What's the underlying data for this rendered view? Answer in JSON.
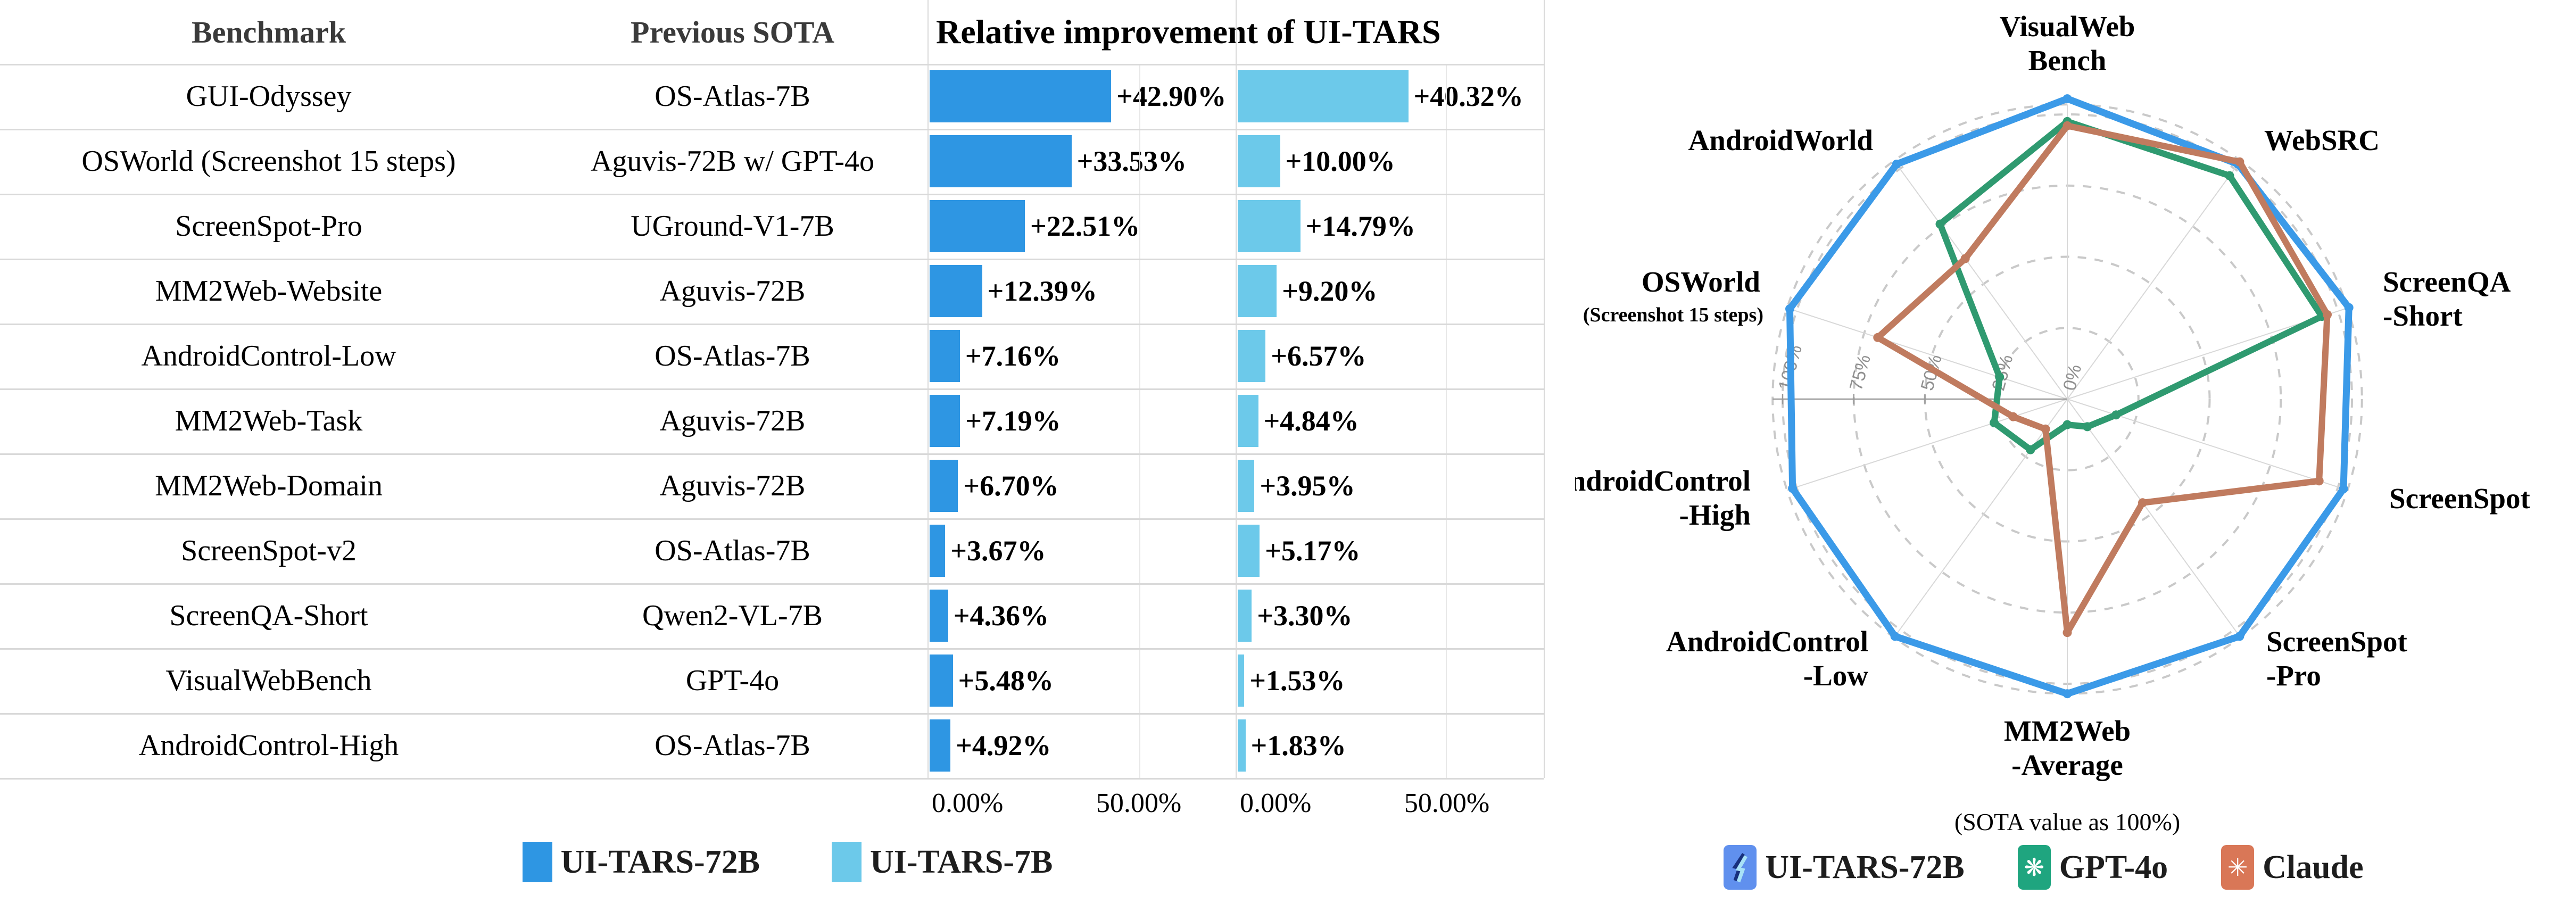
{
  "table": {
    "headers": {
      "benchmark": "Benchmark",
      "previous_sota": "Previous SOTA",
      "improvement": "Relative improvement of UI-TARS"
    }
  },
  "legend_left": [
    {
      "label": "UI-TARS-72B",
      "color": "#2e96e3"
    },
    {
      "label": "UI-TARS-7B",
      "color": "#6cc9ea"
    }
  ],
  "legend_right": [
    {
      "label": "UI-TARS-72B",
      "icon": "uitars-logo",
      "bg": "#6090ee"
    },
    {
      "label": "GPT-4o",
      "icon": "openai-logo",
      "bg": "#1fa57f",
      "glyph": "❋"
    },
    {
      "label": "Claude",
      "icon": "anthropic-logo",
      "bg": "#d97757",
      "glyph": "✳"
    }
  ],
  "chart_data": [
    {
      "type": "bar",
      "orientation": "horizontal",
      "title": "Relative improvement of UI-TARS",
      "categories": [
        "GUI-Odyssey",
        "OSWorld (Screenshot 15 steps)",
        "ScreenSpot-Pro",
        "MM2Web-Website",
        "AndroidControl-Low",
        "MM2Web-Task",
        "MM2Web-Domain",
        "ScreenSpot-v2",
        "ScreenQA-Short",
        "VisualWebBench",
        "AndroidControl-High"
      ],
      "previous_sota": [
        "OS-Atlas-7B",
        "Aguvis-72B w/ GPT-4o",
        "UGround-V1-7B",
        "Aguvis-72B",
        "OS-Atlas-7B",
        "Aguvis-72B",
        "Aguvis-72B",
        "OS-Atlas-7B",
        "Qwen2-VL-7B",
        "GPT-4o",
        "OS-Atlas-7B"
      ],
      "series": [
        {
          "name": "UI-TARS-72B",
          "color": "#2e96e3",
          "values": [
            42.9,
            33.53,
            22.51,
            12.39,
            7.16,
            7.19,
            6.7,
            3.67,
            4.36,
            5.48,
            4.92
          ],
          "labels": [
            "+42.90%",
            "+33.53%",
            "+22.51%",
            "+12.39%",
            "+7.16%",
            "+7.19%",
            "+6.70%",
            "+3.67%",
            "+4.36%",
            "+5.48%",
            "+4.92%"
          ]
        },
        {
          "name": "UI-TARS-7B",
          "color": "#6cc9ea",
          "values": [
            40.32,
            10.0,
            14.79,
            9.2,
            6.57,
            4.84,
            3.95,
            5.17,
            3.3,
            1.53,
            1.83
          ],
          "labels": [
            "+40.32%",
            "+10.00%",
            "+14.79%",
            "+9.20%",
            "+6.57%",
            "+4.84%",
            "+3.95%",
            "+5.17%",
            "+3.30%",
            "+1.53%",
            "+1.83%"
          ]
        }
      ],
      "xticks": [
        "0.00%",
        "50.00%"
      ],
      "xlim": [
        0,
        72.8
      ],
      "grid": true
    },
    {
      "type": "radar",
      "caption": "(SOTA value as 100%)",
      "axes": [
        {
          "lines": [
            "VisualWeb",
            "Bench"
          ]
        },
        {
          "lines": [
            "WebSRC"
          ]
        },
        {
          "lines": [
            "ScreenQA",
            "-Short"
          ]
        },
        {
          "lines": [
            "ScreenSpot"
          ]
        },
        {
          "lines": [
            "ScreenSpot",
            "-Pro"
          ]
        },
        {
          "lines": [
            "MM2Web",
            "-Average"
          ]
        },
        {
          "lines": [
            "AndroidControl",
            "-Low"
          ]
        },
        {
          "lines": [
            "AndroidControl",
            "-High"
          ]
        },
        {
          "lines": [
            "OSWorld"
          ],
          "sub": "(Screenshot 15 steps)"
        },
        {
          "lines": [
            "AndroidWorld"
          ]
        }
      ],
      "rings": [
        25,
        50,
        75,
        100
      ],
      "ring_ticks": [
        "0%",
        "25%",
        "50%",
        "75%",
        "100%"
      ],
      "rlim": [
        0,
        110
      ],
      "series": [
        {
          "name": "UI-TARS-72B",
          "color": "#3b9ae8",
          "values": [
            105.5,
            102,
            104,
            102,
            103,
            103.5,
            103,
            101.5,
            102.5,
            102
          ]
        },
        {
          "name": "GPT-4o",
          "color": "#2f9a70",
          "values": [
            97.5,
            97,
            94,
            18,
            12,
            9,
            22,
            27,
            25,
            76
          ]
        },
        {
          "name": "Claude",
          "color": "#c07b5f",
          "values": [
            96,
            103,
            96,
            93,
            45,
            82,
            13,
            20,
            70,
            61
          ]
        }
      ]
    }
  ]
}
